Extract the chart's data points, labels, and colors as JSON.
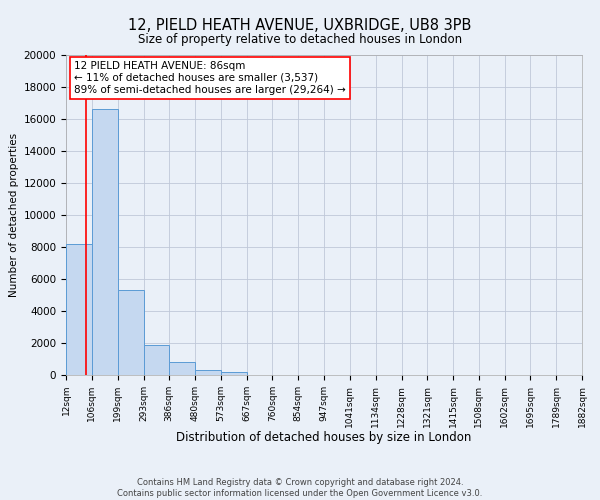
{
  "title": "12, PIELD HEATH AVENUE, UXBRIDGE, UB8 3PB",
  "subtitle": "Size of property relative to detached houses in London",
  "xlabel": "Distribution of detached houses by size in London",
  "ylabel": "Number of detached properties",
  "footer_line1": "Contains HM Land Registry data © Crown copyright and database right 2024.",
  "footer_line2": "Contains public sector information licensed under the Open Government Licence v3.0.",
  "annotation_line1": "12 PIELD HEATH AVENUE: 86sqm",
  "annotation_line2": "← 11% of detached houses are smaller (3,537)",
  "annotation_line3": "89% of semi-detached houses are larger (29,264) →",
  "bar_edges": [
    12,
    106,
    199,
    293,
    386,
    480,
    573,
    667,
    760,
    854,
    947,
    1041,
    1134,
    1228,
    1321,
    1415,
    1508,
    1602,
    1695,
    1789,
    1882
  ],
  "bar_heights": [
    8200,
    16600,
    5300,
    1850,
    800,
    300,
    200,
    0,
    0,
    0,
    0,
    0,
    0,
    0,
    0,
    0,
    0,
    0,
    0,
    0
  ],
  "bar_color": "#c5d8f0",
  "bar_edge_color": "#5b9bd5",
  "property_line_x": 86,
  "property_line_color": "red",
  "ylim": [
    0,
    20000
  ],
  "yticks": [
    0,
    2000,
    4000,
    6000,
    8000,
    10000,
    12000,
    14000,
    16000,
    18000,
    20000
  ],
  "grid_color": "#c0c8d8",
  "bg_color": "#eaf0f8",
  "annotation_box_color": "#ffffff",
  "annotation_box_edge": "red"
}
